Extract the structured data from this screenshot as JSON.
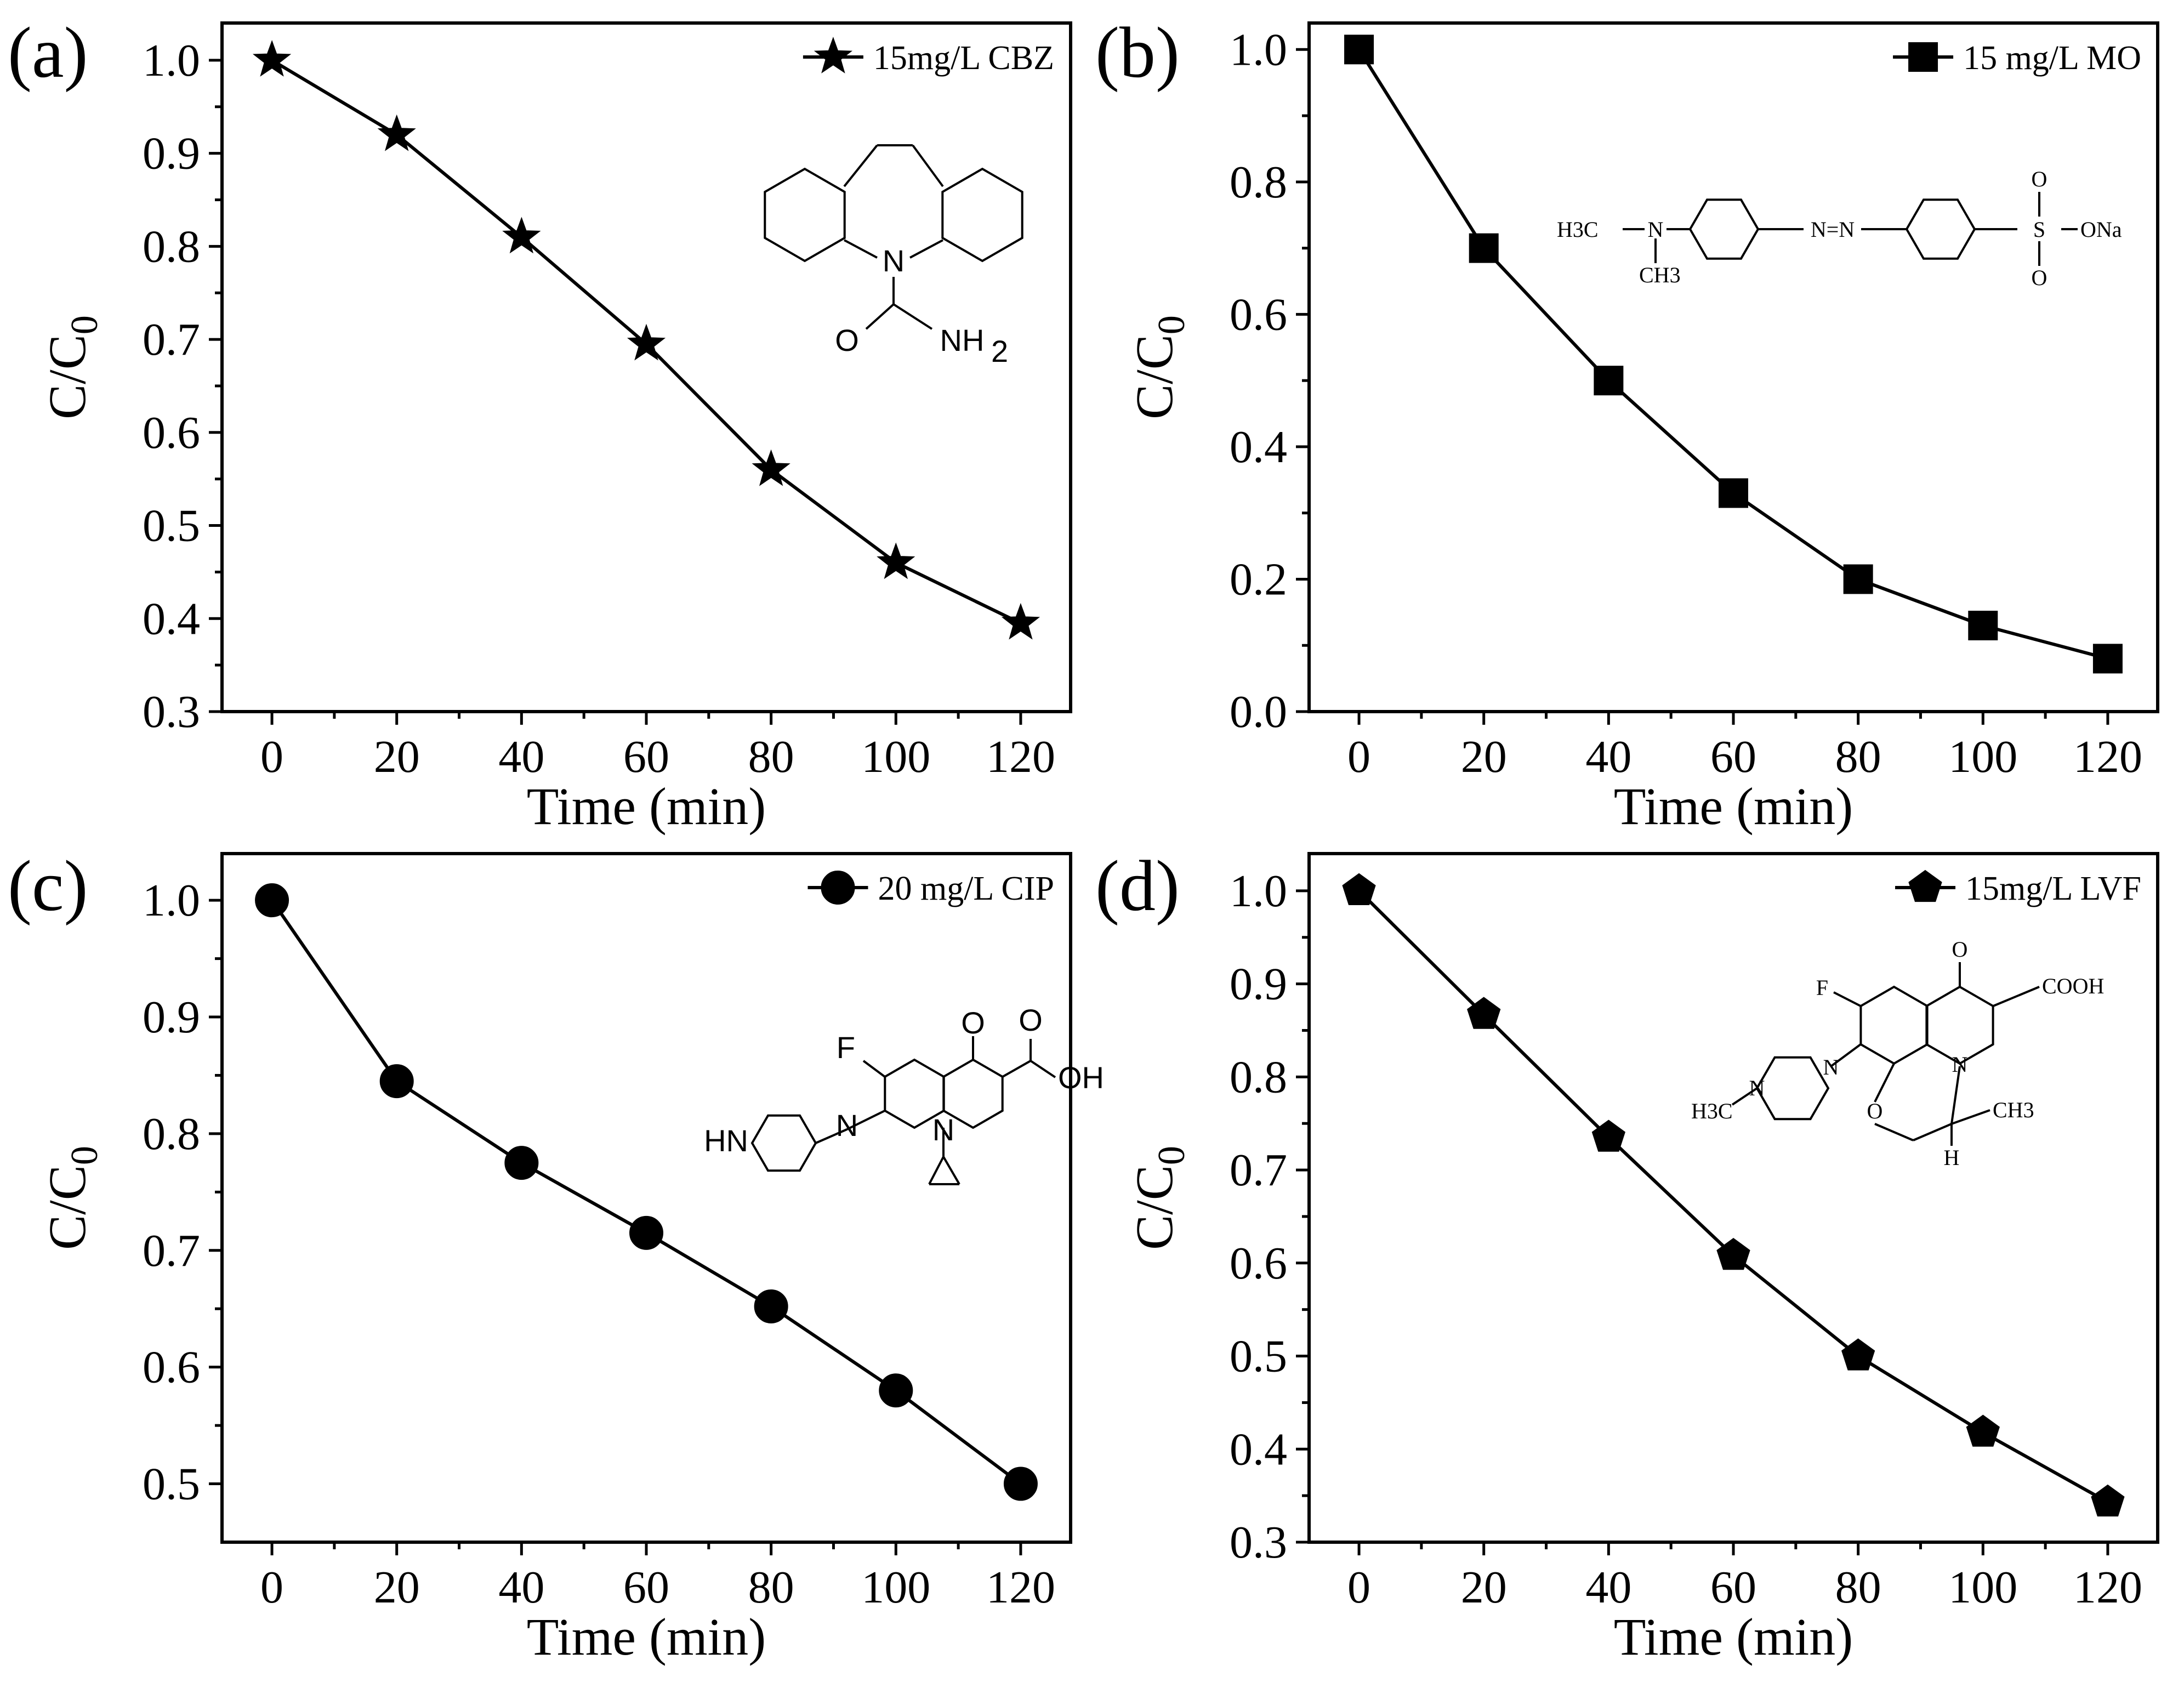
{
  "chart_data": [
    {
      "type": "line",
      "panel_label": "(a)",
      "title": "",
      "xlabel": "Time (min)",
      "ylabel": "C/C0",
      "ylabel_main": "C/C",
      "ylabel_sub": "0",
      "xlim": [
        -8,
        128
      ],
      "ylim": [
        0.3,
        1.04
      ],
      "xticks": [
        0,
        20,
        40,
        60,
        80,
        100,
        120
      ],
      "xtick_labels": [
        "0",
        "20",
        "40",
        "60",
        "80",
        "100",
        "120"
      ],
      "yticks": [
        0.3,
        0.4,
        0.5,
        0.6,
        0.7,
        0.8,
        0.9,
        1.0
      ],
      "ytick_labels": [
        "0.3",
        "0.4",
        "0.5",
        "0.6",
        "0.7",
        "0.8",
        "0.9",
        "1.0"
      ],
      "marker": "star",
      "legend_position": "top-right",
      "series": [
        {
          "name": "15mg/L CBZ",
          "x": [
            0,
            20,
            40,
            60,
            80,
            100,
            120
          ],
          "values": [
            1.0,
            0.92,
            0.81,
            0.695,
            0.56,
            0.46,
            0.395
          ]
        }
      ],
      "structure": {
        "compound": "carbamazepine",
        "labels": [
          "N",
          "O",
          "NH",
          "2"
        ]
      }
    },
    {
      "type": "line",
      "panel_label": "(b)",
      "title": "",
      "xlabel": "Time (min)",
      "ylabel": "C/C0",
      "ylabel_main": "C/C",
      "ylabel_sub": "0",
      "xlim": [
        -8,
        128
      ],
      "ylim": [
        0.0,
        1.04
      ],
      "xticks": [
        0,
        20,
        40,
        60,
        80,
        100,
        120
      ],
      "xtick_labels": [
        "0",
        "20",
        "40",
        "60",
        "80",
        "100",
        "120"
      ],
      "yticks": [
        0.0,
        0.2,
        0.4,
        0.6,
        0.8,
        1.0
      ],
      "ytick_labels": [
        "0.0",
        "0.2",
        "0.4",
        "0.6",
        "0.8",
        "1.0"
      ],
      "marker": "square",
      "legend_position": "top-right",
      "series": [
        {
          "name": "15 mg/L MO",
          "x": [
            0,
            20,
            40,
            60,
            80,
            100,
            120
          ],
          "values": [
            1.0,
            0.7,
            0.5,
            0.33,
            0.2,
            0.13,
            0.08
          ]
        }
      ],
      "structure": {
        "compound": "methyl orange",
        "labels": [
          "H3C",
          "N",
          "CH3",
          "N=N",
          "S",
          "O",
          "O",
          "ONa"
        ]
      }
    },
    {
      "type": "line",
      "panel_label": "(c)",
      "title": "",
      "xlabel": "Time (min)",
      "ylabel": "C/C0",
      "ylabel_main": "C/C",
      "ylabel_sub": "0",
      "xlim": [
        -8,
        128
      ],
      "ylim": [
        0.45,
        1.04
      ],
      "xticks": [
        0,
        20,
        40,
        60,
        80,
        100,
        120
      ],
      "xtick_labels": [
        "0",
        "20",
        "40",
        "60",
        "80",
        "100",
        "120"
      ],
      "yticks": [
        0.5,
        0.6,
        0.7,
        0.8,
        0.9,
        1.0
      ],
      "ytick_labels": [
        "0.5",
        "0.6",
        "0.7",
        "0.8",
        "0.9",
        "1.0"
      ],
      "marker": "circle",
      "legend_position": "top-right",
      "series": [
        {
          "name": "20 mg/L CIP",
          "x": [
            0,
            20,
            40,
            60,
            80,
            100,
            120
          ],
          "values": [
            1.0,
            0.845,
            0.775,
            0.715,
            0.652,
            0.58,
            0.5
          ]
        }
      ],
      "structure": {
        "compound": "ciprofloxacin",
        "labels": [
          "F",
          "O",
          "O",
          "OH",
          "N",
          "N",
          "HN"
        ]
      }
    },
    {
      "type": "line",
      "panel_label": "(d)",
      "title": "",
      "xlabel": "Time (min)",
      "ylabel": "C/C0",
      "ylabel_main": "C/C",
      "ylabel_sub": "0",
      "xlim": [
        -8,
        128
      ],
      "ylim": [
        0.3,
        1.04
      ],
      "xticks": [
        0,
        20,
        40,
        60,
        80,
        100,
        120
      ],
      "xtick_labels": [
        "0",
        "20",
        "40",
        "60",
        "80",
        "100",
        "120"
      ],
      "yticks": [
        0.3,
        0.4,
        0.5,
        0.6,
        0.7,
        0.8,
        0.9,
        1.0
      ],
      "ytick_labels": [
        "0.3",
        "0.4",
        "0.5",
        "0.6",
        "0.7",
        "0.8",
        "0.9",
        "1.0"
      ],
      "marker": "pentagon",
      "legend_position": "top-right",
      "series": [
        {
          "name": "15mg/L LVF",
          "x": [
            0,
            20,
            40,
            60,
            80,
            100,
            120
          ],
          "values": [
            1.0,
            0.867,
            0.735,
            0.608,
            0.5,
            0.418,
            0.343
          ]
        }
      ],
      "structure": {
        "compound": "levofloxacin",
        "labels": [
          "F",
          "O",
          "COOH",
          "N",
          "N",
          "N",
          "O",
          "CH3",
          "H",
          "H3C"
        ]
      }
    }
  ]
}
